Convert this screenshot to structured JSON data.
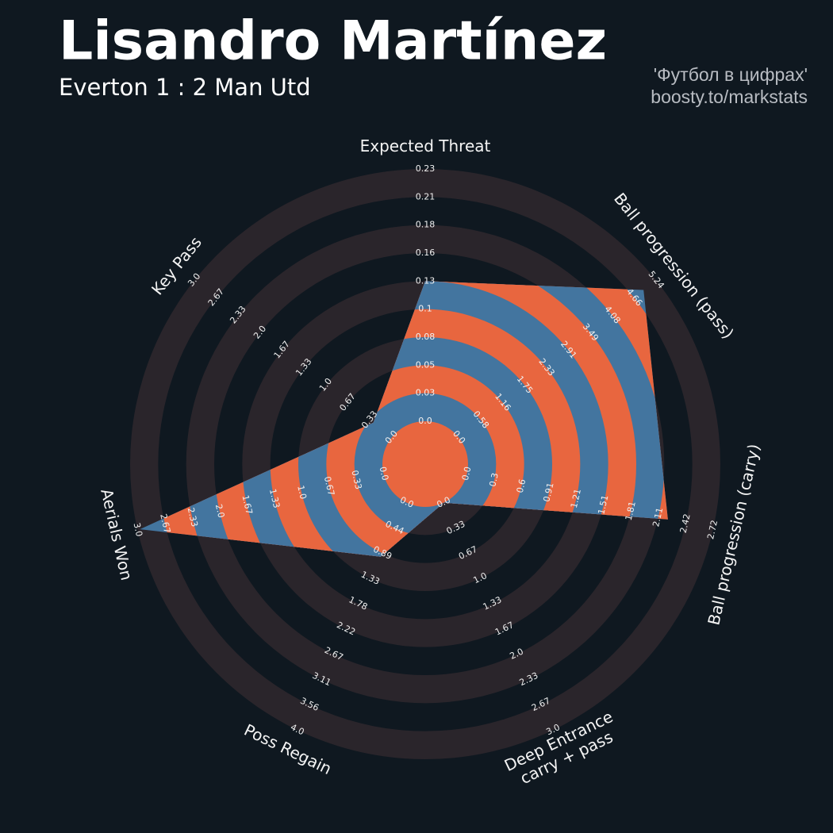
{
  "chart_data": {
    "type": "radar",
    "title": "Lisandro Martínez",
    "subtitle": "Everton 1 : 2 Man Utd",
    "credit": [
      "'Футбол в цифрах'",
      "boosty.to/markstats"
    ],
    "color": "#43759f",
    "alt_color": "#e8663f",
    "ring_color": "#2a252b",
    "axes": [
      {
        "name": [
          "Expected Threat"
        ],
        "lim": [
          0,
          0.234
        ],
        "ticks": [
          {
            "value": 0,
            "label": "0.0"
          },
          {
            "value": 0.026,
            "label": "0.03"
          },
          {
            "value": 0.052,
            "label": "0.05"
          },
          {
            "value": 0.078,
            "label": "0.08"
          },
          {
            "value": 0.104,
            "label": "0.1"
          },
          0.13,
          {
            "value": 0.156,
            "label": "0.16"
          },
          {
            "value": 0.182,
            "label": "0.18"
          },
          {
            "value": 0.208,
            "label": "0.21"
          },
          {
            "value": 0.234,
            "label": "0.23"
          }
        ]
      },
      {
        "name": [
          "Ball progression (pass)"
        ],
        "lim": [
          0,
          5.24
        ],
        "ticks": [
          {
            "value": 0,
            "label": "0.0"
          },
          {
            "value": 0.5822,
            "label": "0.58"
          },
          {
            "value": 1.1644,
            "label": "1.16"
          },
          {
            "value": 1.7467,
            "label": "1.75"
          },
          {
            "value": 2.3289,
            "label": "2.33"
          },
          {
            "value": 2.9111,
            "label": "2.91"
          },
          {
            "value": 3.4933,
            "label": "3.49"
          },
          {
            "value": 4.0756,
            "label": "4.08"
          },
          {
            "value": 4.6578,
            "label": "4.66"
          },
          5.24
        ]
      },
      {
        "name": [
          "Ball progression (carry)"
        ],
        "lim": [
          0,
          2.718
        ],
        "ticks": [
          {
            "value": 0,
            "label": "0.0"
          },
          {
            "value": 0.302,
            "label": "0.3"
          },
          {
            "value": 0.604,
            "label": "0.6"
          },
          {
            "value": 0.906,
            "label": "0.91"
          },
          {
            "value": 1.208,
            "label": "1.21"
          },
          1.51,
          {
            "value": 1.812,
            "label": "1.81"
          },
          {
            "value": 2.114,
            "label": "2.11"
          },
          {
            "value": 2.416,
            "label": "2.42"
          },
          {
            "value": 2.718,
            "label": "2.72"
          }
        ]
      },
      {
        "name": [
          "Deep Entrance",
          "carry + pass"
        ],
        "lim": [
          0,
          3
        ],
        "ticks": [
          {
            "value": 0,
            "label": "0.0"
          },
          {
            "value": 0.3333,
            "label": "0.33"
          },
          {
            "value": 0.6667,
            "label": "0.67"
          },
          {
            "value": 1,
            "label": "1.0"
          },
          {
            "value": 1.3333,
            "label": "1.33"
          },
          {
            "value": 1.6667,
            "label": "1.67"
          },
          {
            "value": 2,
            "label": "2.0"
          },
          {
            "value": 2.3333,
            "label": "2.33"
          },
          {
            "value": 2.6667,
            "label": "2.67"
          },
          {
            "value": 3,
            "label": "3.0"
          }
        ]
      },
      {
        "name": [
          "Poss Regain"
        ],
        "lim": [
          0,
          4
        ],
        "ticks": [
          {
            "value": 0,
            "label": "0.0"
          },
          {
            "value": 0.4444,
            "label": "0.44"
          },
          {
            "value": 0.8889,
            "label": "0.89"
          },
          {
            "value": 1.3333,
            "label": "1.33"
          },
          {
            "value": 1.7778,
            "label": "1.78"
          },
          {
            "value": 2.2222,
            "label": "2.22"
          },
          {
            "value": 2.6667,
            "label": "2.67"
          },
          {
            "value": 3.1111,
            "label": "3.11"
          },
          {
            "value": 3.5556,
            "label": "3.56"
          },
          {
            "value": 4,
            "label": "4.0"
          }
        ]
      },
      {
        "name": [
          "Aerials Won"
        ],
        "lim": [
          0,
          3
        ],
        "ticks": [
          {
            "value": 0,
            "label": "0.0"
          },
          {
            "value": 0.3333,
            "label": "0.33"
          },
          {
            "value": 0.6667,
            "label": "0.67"
          },
          {
            "value": 1,
            "label": "1.0"
          },
          {
            "value": 1.3333,
            "label": "1.33"
          },
          {
            "value": 1.6667,
            "label": "1.67"
          },
          {
            "value": 2,
            "label": "2.0"
          },
          {
            "value": 2.3333,
            "label": "2.33"
          },
          {
            "value": 2.6667,
            "label": "2.67"
          },
          {
            "value": 3,
            "label": "3.0"
          }
        ]
      },
      {
        "name": [
          "Key Pass"
        ],
        "lim": [
          0,
          3
        ],
        "ticks": [
          {
            "value": 0,
            "label": "0.0"
          },
          {
            "value": 0.3333,
            "label": "0.33"
          },
          {
            "value": 0.6667,
            "label": "0.67"
          },
          {
            "value": 1,
            "label": "1.0"
          },
          {
            "value": 1.3333,
            "label": "1.33"
          },
          {
            "value": 1.6667,
            "label": "1.67"
          },
          {
            "value": 2,
            "label": "2.0"
          },
          {
            "value": 2.3333,
            "label": "2.33"
          },
          {
            "value": 2.6667,
            "label": "2.67"
          },
          {
            "value": 3,
            "label": "3.0"
          }
        ]
      }
    ],
    "values": [
      0.13,
      4.91,
      2.22,
      0,
      0.95,
      2.97,
      0.28
    ]
  }
}
